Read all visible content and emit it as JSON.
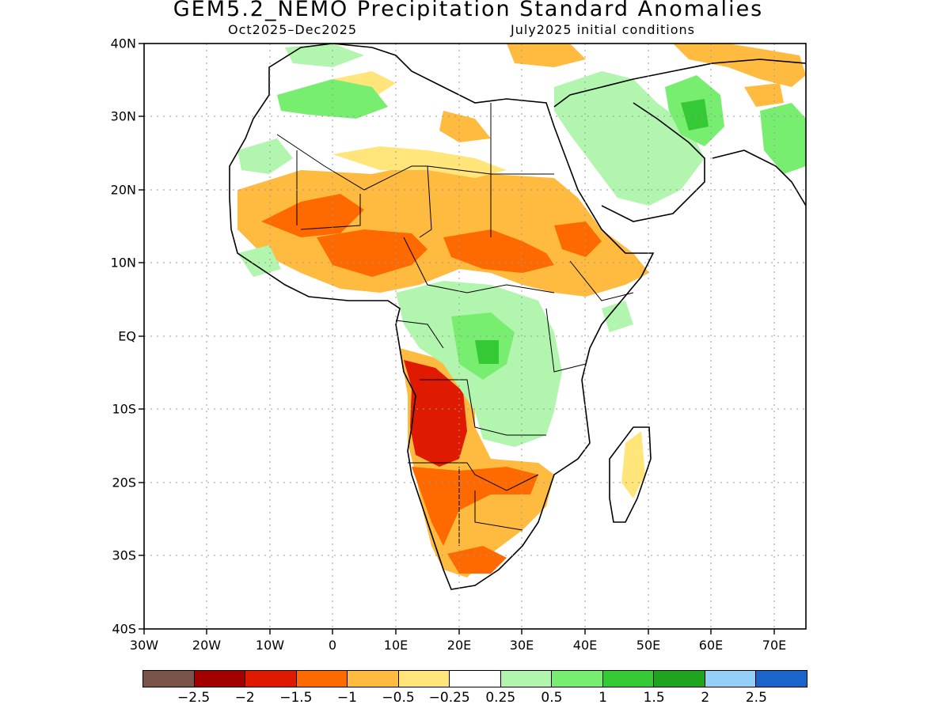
{
  "title": "GEM5.2_NEMO Precipitation Standard Anomalies",
  "period": "Oct2025–Dec2025",
  "init": "July2025 initial conditions",
  "lat_labels": [
    "40N",
    "30N",
    "20N",
    "10N",
    "EQ",
    "10S",
    "20S",
    "30S",
    "40S"
  ],
  "lon_labels": [
    "30W",
    "20W",
    "10W",
    "0",
    "10E",
    "20E",
    "30E",
    "40E",
    "50E",
    "60E",
    "70E"
  ],
  "colorbar": {
    "colors": [
      "#7a5448",
      "#a30000",
      "#e01a00",
      "#ff6a00",
      "#ffbb40",
      "#ffe57a",
      "#ffffff",
      "#b2f5ae",
      "#78ee70",
      "#36c936",
      "#1ea41e",
      "#94cff7",
      "#1a64cc"
    ],
    "labels": [
      "−2.5",
      "−2",
      "−1.5",
      "−1",
      "−0.5",
      "−0.25",
      "0.25",
      "0.5",
      "1",
      "1.5",
      "2",
      "2.5"
    ]
  },
  "map": {
    "extent": {
      "lon_min": -30,
      "lon_max": 75,
      "lat_min": -40,
      "lat_max": 40
    },
    "regions": [
      {
        "name": "Sahel dry anomaly",
        "level": "-1"
      },
      {
        "name": "Angola/Namibia dry anomaly",
        "level": "-1.5"
      },
      {
        "name": "Southern Africa dry anomaly",
        "level": "-1"
      },
      {
        "name": "Central/East Africa wet anomaly",
        "level": "0.5"
      },
      {
        "name": "Maghreb wet anomaly",
        "level": "0.5"
      },
      {
        "name": "Arabia/Iran wet anomaly",
        "level": "1"
      }
    ]
  }
}
